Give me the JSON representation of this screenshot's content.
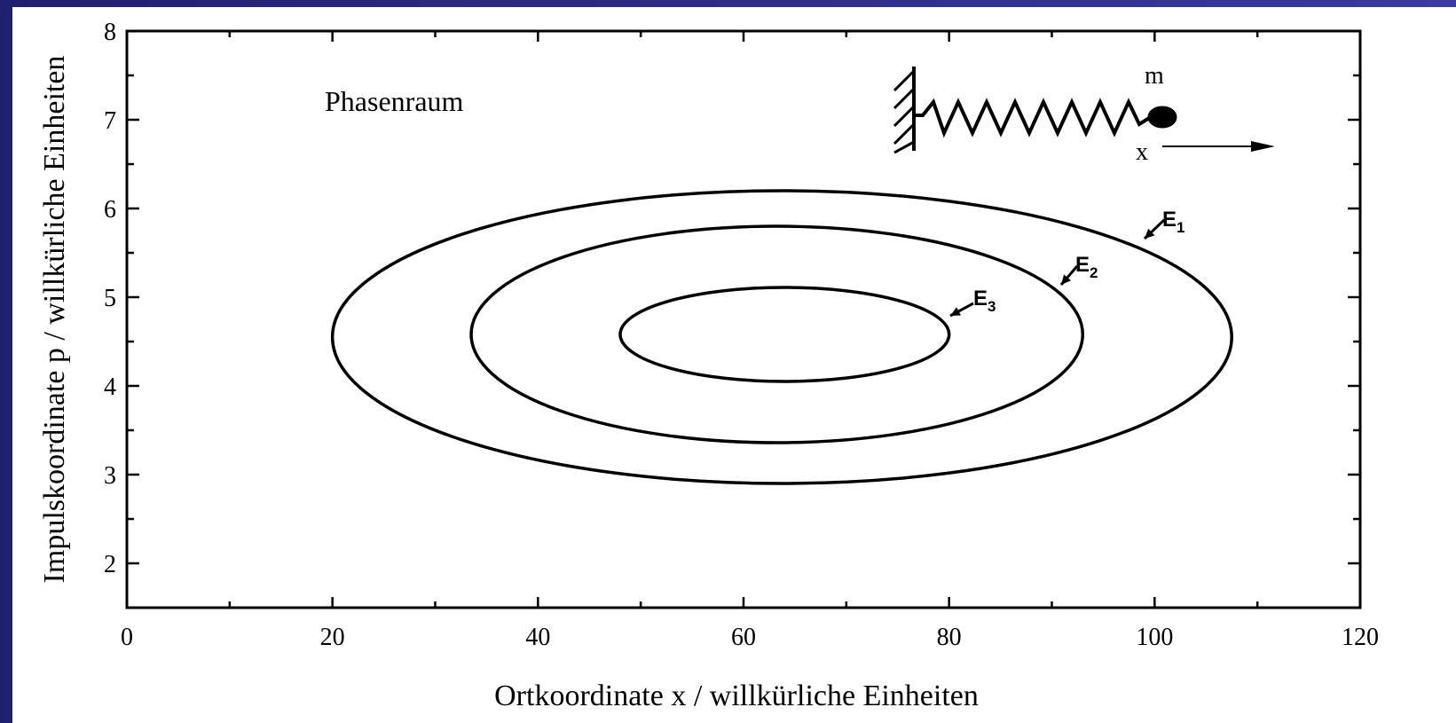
{
  "chart_data": {
    "type": "ellipse",
    "annotations": [
      "Phasenraum",
      "m",
      "x"
    ],
    "x_label": "Ortkoordinate x / willkürliche Einheiten",
    "y_label": "Impulskoordinate p / willkürliche Einheiten",
    "xlim": [
      0,
      120
    ],
    "xticks": [
      0,
      20,
      40,
      60,
      80,
      100,
      120
    ],
    "xminorticks": [
      10,
      30,
      50,
      70,
      90,
      110
    ],
    "ylim": [
      1.5,
      8
    ],
    "yticks": [
      2,
      3,
      4,
      5,
      6,
      7,
      8
    ],
    "yminorticks": [
      2.5,
      3.5,
      4.5,
      5.5,
      6.5,
      7.5
    ],
    "color": "#000000",
    "series": [
      {
        "label": "E",
        "label_sub": "1",
        "cx": 63.75,
        "cy": 4.55,
        "rx": 43.75,
        "ry": 1.65
      },
      {
        "label": "E",
        "label_sub": "2",
        "cx": 63.25,
        "cy": 4.58,
        "rx": 29.75,
        "ry": 1.22
      },
      {
        "label": "E",
        "label_sub": "3",
        "cx": 64,
        "cy": 4.58,
        "rx": 16,
        "ry": 0.53
      }
    ]
  }
}
